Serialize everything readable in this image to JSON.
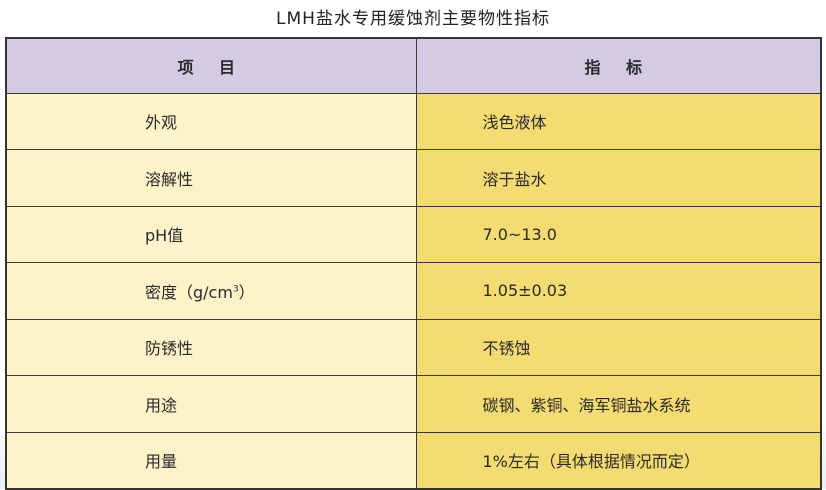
{
  "title": "LMH盐水专用缓蚀剂主要物性指标",
  "header": {
    "item": "项 目",
    "spec": "指 标"
  },
  "rows": [
    {
      "item": "外观",
      "spec": "浅色液体"
    },
    {
      "item": "溶解性",
      "spec": "溶于盐水"
    },
    {
      "item": "pH值",
      "spec": "7.0~13.0"
    },
    {
      "item": "密度（g/cm",
      "item_sup": "3",
      "item_end": "）",
      "spec": "1.05±0.03"
    },
    {
      "item": "防锈性",
      "spec": "不锈蚀"
    },
    {
      "item": "用途",
      "spec": "碳钢、紫铜、海军铜盐水系统"
    },
    {
      "item": "用量",
      "spec": "1%左右（具体根据情况而定）"
    }
  ],
  "colors": {
    "header_bg": "#d3cbe3",
    "item_bg": "#fdf3c9",
    "spec_bg": "#f4dc72"
  }
}
